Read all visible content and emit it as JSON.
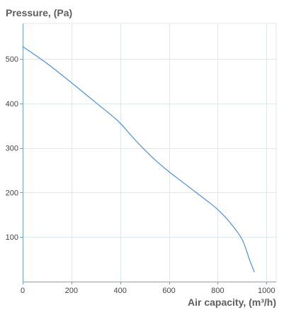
{
  "chart_data": {
    "type": "line",
    "xlabel": "Air capacity, (m³/h)",
    "ylabel": "Pressure, (Pa)",
    "xlim": [
      0,
      1040
    ],
    "ylim": [
      0,
      580
    ],
    "x_ticks": [
      0,
      200,
      400,
      600,
      800,
      1000
    ],
    "y_ticks": [
      100,
      200,
      300,
      400,
      500
    ],
    "grid": true,
    "legend": "none",
    "series": [
      {
        "color": "#4a90d9",
        "points": [
          [
            0,
            528
          ],
          [
            100,
            490
          ],
          [
            200,
            447
          ],
          [
            300,
            402
          ],
          [
            350,
            380
          ],
          [
            400,
            356
          ],
          [
            450,
            325
          ],
          [
            500,
            296
          ],
          [
            550,
            270
          ],
          [
            600,
            247
          ],
          [
            650,
            226
          ],
          [
            700,
            205
          ],
          [
            750,
            184
          ],
          [
            800,
            162
          ],
          [
            850,
            133
          ],
          [
            900,
            95
          ],
          [
            930,
            50
          ],
          [
            950,
            22
          ]
        ]
      }
    ],
    "colors": {
      "grid": "#dde8ee",
      "axis": "#6fa3c7"
    }
  }
}
